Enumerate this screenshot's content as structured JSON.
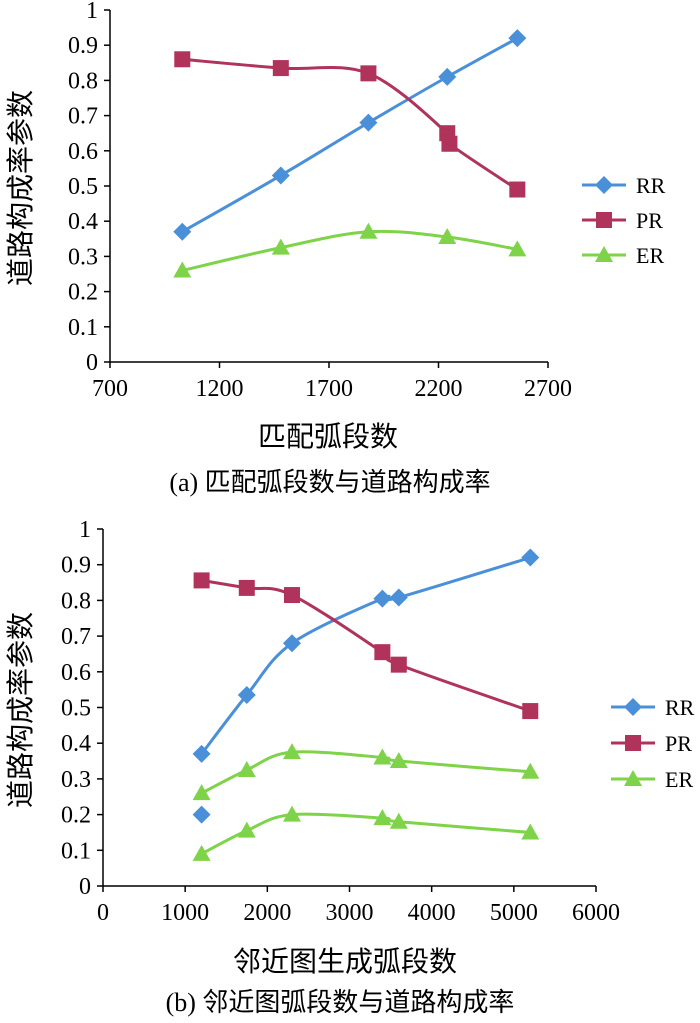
{
  "chart_data": [
    {
      "type": "line",
      "caption": "(a) 匹配弧段数与道路构成率",
      "xlabel": "匹配弧段数",
      "ylabel": "道路构成率参数",
      "xlim": [
        700,
        2700
      ],
      "ylim": [
        0,
        1
      ],
      "xticks": [
        "700",
        "1200",
        "1700",
        "2200",
        "2700"
      ],
      "yticks": [
        "0",
        "0.1",
        "0.2",
        "0.3",
        "0.4",
        "0.5",
        "0.6",
        "0.7",
        "0.8",
        "0.9",
        "1"
      ],
      "legend_position": "right",
      "series": [
        {
          "name": "RR",
          "color": "#4a90d9",
          "marker": "diamond",
          "x": [
            1030,
            1480,
            1880,
            2240,
            2560
          ],
          "y": [
            0.37,
            0.53,
            0.68,
            0.81,
            0.92
          ]
        },
        {
          "name": "PR",
          "color": "#b0335b",
          "marker": "square",
          "x": [
            1030,
            1480,
            1880,
            2240,
            2250,
            2560
          ],
          "y": [
            0.86,
            0.835,
            0.82,
            0.65,
            0.62,
            0.49
          ]
        },
        {
          "name": "ER",
          "color": "#7ed348",
          "marker": "triangle",
          "x": [
            1030,
            1480,
            1880,
            2240,
            2560
          ],
          "y": [
            0.26,
            0.325,
            0.37,
            0.355,
            0.32
          ]
        }
      ]
    },
    {
      "type": "line",
      "caption": "(b) 邻近图弧段数与道路构成率",
      "xlabel": "邻近图生成弧段数",
      "ylabel": "道路构成率参数",
      "xlim": [
        0,
        6000
      ],
      "ylim": [
        0,
        1
      ],
      "xticks": [
        "0",
        "1000",
        "2000",
        "3000",
        "4000",
        "5000",
        "6000"
      ],
      "yticks": [
        "0",
        "0.1",
        "0.2",
        "0.3",
        "0.4",
        "0.5",
        "0.6",
        "0.7",
        "0.8",
        "0.9",
        "1"
      ],
      "legend_position": "right",
      "series": [
        {
          "name": "RR",
          "color": "#4a90d9",
          "marker": "diamond",
          "x": [
            1200,
            1750,
            2300,
            3400,
            3600,
            5200
          ],
          "y": [
            0.37,
            0.535,
            0.68,
            0.805,
            0.808,
            0.92
          ]
        },
        {
          "name": "PR",
          "color": "#b0335b",
          "marker": "square",
          "x": [
            1200,
            1750,
            2300,
            3400,
            3600,
            5200
          ],
          "y": [
            0.856,
            0.835,
            0.815,
            0.655,
            0.62,
            0.49
          ]
        },
        {
          "name": "ER",
          "color": "#7ed348",
          "marker": "triangle",
          "x": [
            1200,
            1750,
            2300,
            3400,
            3600,
            5200
          ],
          "y": [
            0.26,
            0.325,
            0.375,
            0.36,
            0.35,
            0.32
          ]
        },
        {
          "name": "",
          "color": "#4a90d9",
          "marker": "diamond",
          "line": false,
          "x": [
            1200
          ],
          "y": [
            0.2
          ]
        },
        {
          "name": "",
          "color": "#7ed348",
          "marker": "triangle",
          "x": [
            1200,
            1750,
            2300,
            3400,
            3600,
            5200
          ],
          "y": [
            0.09,
            0.155,
            0.2,
            0.19,
            0.18,
            0.15
          ]
        }
      ]
    }
  ]
}
